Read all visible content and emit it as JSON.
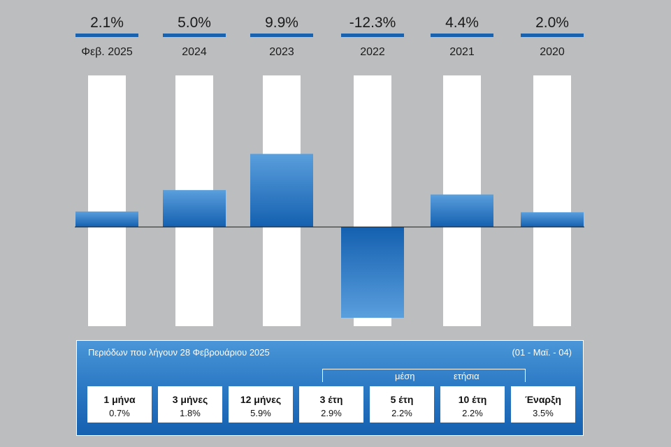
{
  "chart_data": {
    "type": "bar",
    "categories": [
      "Φεβ. 2025",
      "2024",
      "2023",
      "2022",
      "2021",
      "2020"
    ],
    "values": [
      2.1,
      5.0,
      9.9,
      -12.3,
      4.4,
      2.0
    ],
    "value_labels": [
      "2.1%",
      "5.0%",
      "9.9%",
      "-12.3%",
      "4.4%",
      "2.0%"
    ],
    "title": "",
    "xlabel": "",
    "ylabel": "",
    "ylim": [
      -13,
      20
    ],
    "grid": false,
    "colors": {
      "bar_top": "#5a9fdd",
      "bar_bottom": "#1460b0",
      "track": "#ffffff",
      "underline": "#1a62ad",
      "zero_line": "#1a1a1a"
    }
  },
  "returns_panel": {
    "title": "Περιόδων που λήγουν 28 Φεβρουάριου 2025",
    "range": "(01 - Μαϊ. - 04)",
    "avg_label_1": "μέση",
    "avg_label_2": "ετήσια",
    "items": [
      {
        "period": "1 μήνα",
        "value": "0.7%"
      },
      {
        "period": "3 μήνες",
        "value": "1.8%"
      },
      {
        "period": "12 μήνες",
        "value": "5.9%"
      },
      {
        "period": "3 έτη",
        "value": "2.9%"
      },
      {
        "period": "5 έτη",
        "value": "2.2%"
      },
      {
        "period": "10 έτη",
        "value": "2.2%"
      },
      {
        "period": "Έναρξη",
        "value": "3.5%"
      }
    ]
  }
}
